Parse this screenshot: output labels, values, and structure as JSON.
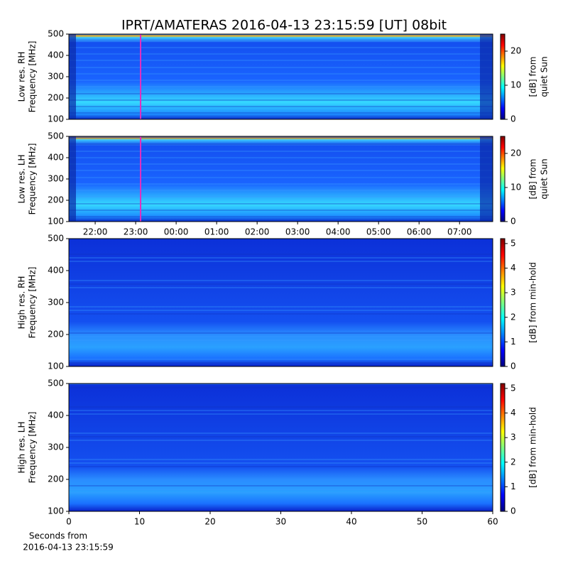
{
  "chart_data": [
    {
      "type": "heatmap",
      "title": "IPRT/AMATERAS 2016-04-13 23:15:59 [UT]   08bit",
      "ylabel": [
        "Low res. RH",
        "Frequency [MHz]"
      ],
      "ylim": [
        100,
        500
      ],
      "yticks": [
        100,
        200,
        300,
        400,
        500
      ],
      "xlim": [
        21.35,
        31.82
      ],
      "colorbar": {
        "lim": [
          0,
          25
        ],
        "ticks": [
          0,
          10,
          20
        ],
        "label": [
          "[dB] from",
          "quiet Sun"
        ]
      }
    },
    {
      "type": "heatmap",
      "ylabel": [
        "Low res. LH",
        "Frequency [MHz]"
      ],
      "ylim": [
        100,
        500
      ],
      "yticks": [
        100,
        200,
        300,
        400,
        500
      ],
      "xlim": [
        21.35,
        31.82
      ],
      "xticks": [
        {
          "value": 22,
          "label": "22:00"
        },
        {
          "value": 23,
          "label": "23:00"
        },
        {
          "value": 24,
          "label": "00:00"
        },
        {
          "value": 25,
          "label": "01:00"
        },
        {
          "value": 26,
          "label": "02:00"
        },
        {
          "value": 27,
          "label": "03:00"
        },
        {
          "value": 28,
          "label": "04:00"
        },
        {
          "value": 29,
          "label": "05:00"
        },
        {
          "value": 30,
          "label": "06:00"
        },
        {
          "value": 31,
          "label": "07:00"
        }
      ],
      "colorbar": {
        "lim": [
          0,
          25
        ],
        "ticks": [
          0,
          10,
          20
        ],
        "label": [
          "[dB] from",
          "quiet Sun"
        ]
      }
    },
    {
      "type": "heatmap",
      "ylabel": [
        "High res. RH",
        "Frequency [MHz]"
      ],
      "ylim": [
        100,
        500
      ],
      "yticks": [
        100,
        200,
        300,
        400,
        500
      ],
      "xlim": [
        0,
        60
      ],
      "colorbar": {
        "lim": [
          0,
          5.2
        ],
        "ticks": [
          0,
          1,
          2,
          3,
          4,
          5
        ],
        "label": [
          "[dB] from min-hold"
        ]
      }
    },
    {
      "type": "heatmap",
      "ylabel": [
        "High res. LH",
        "Frequency [MHz]"
      ],
      "ylim": [
        100,
        500
      ],
      "yticks": [
        100,
        200,
        300,
        400,
        500
      ],
      "xlim": [
        0,
        60
      ],
      "xticks": [
        0,
        10,
        20,
        30,
        40,
        50,
        60
      ],
      "xlabel": [
        "Seconds from",
        "2016-04-13 23:15:59"
      ],
      "colorbar": {
        "lim": [
          0,
          5.2
        ],
        "ticks": [
          0,
          1,
          2,
          3,
          4,
          5
        ],
        "label": [
          "[dB] from min-hold"
        ]
      }
    }
  ]
}
